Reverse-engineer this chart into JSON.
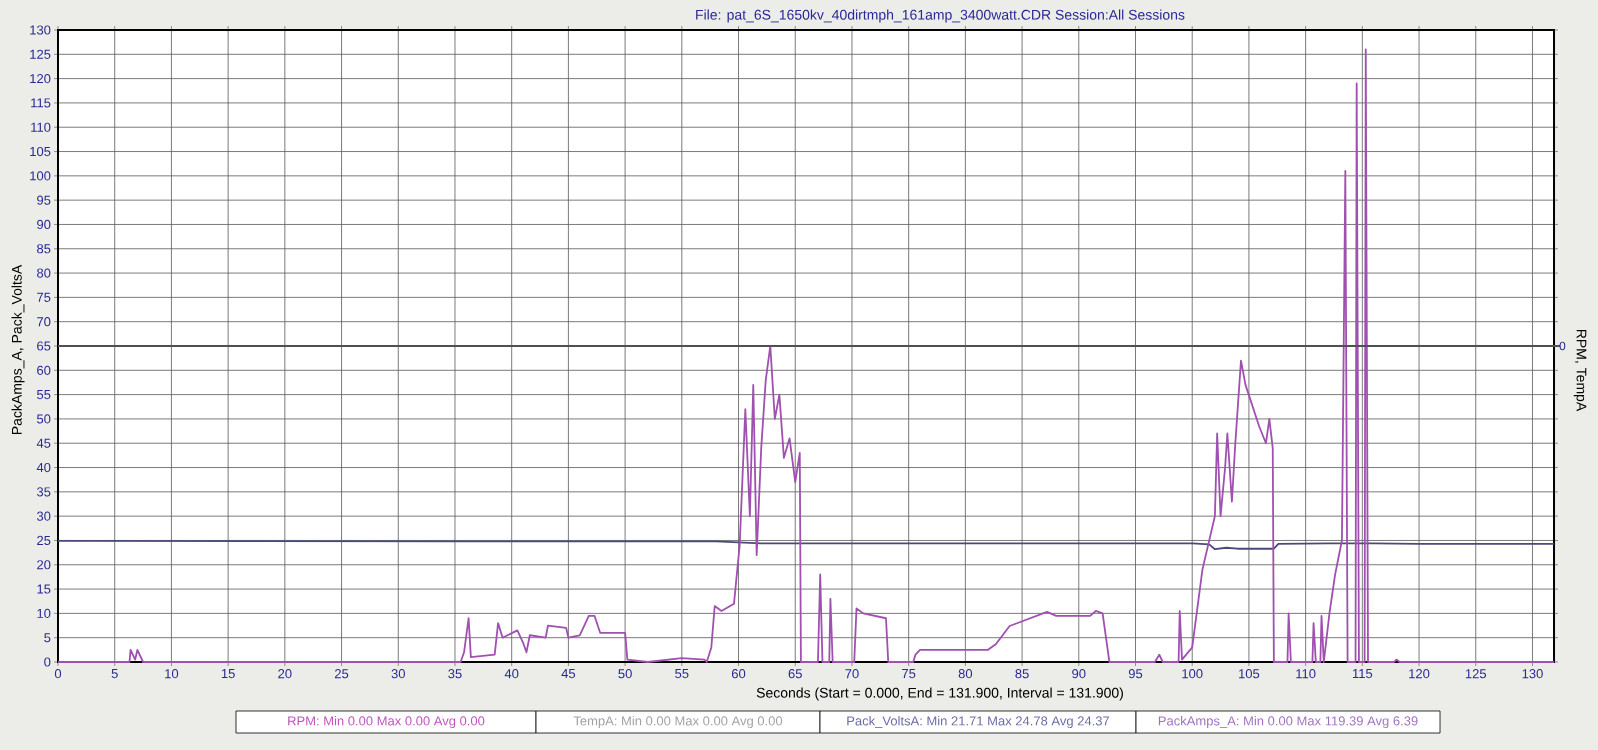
{
  "chart_data": {
    "type": "line",
    "title": "File: pat_6S_1650kv_40dirtmph_161amp_3400watt.CDR   Session:All Sessions",
    "xlabel": "Seconds (Start = 0.000,  End = 131.900,  Interval =  131.900)",
    "ylabel": "PackAmps_A, Pack_VoltsA",
    "y2label": "RPM, TempA",
    "xlim": [
      0,
      131.9
    ],
    "ylim": [
      0,
      130
    ],
    "xticks": [
      0,
      5,
      10,
      15,
      20,
      25,
      30,
      35,
      40,
      45,
      50,
      55,
      60,
      65,
      70,
      75,
      80,
      85,
      90,
      95,
      100,
      105,
      110,
      115,
      120,
      125,
      130
    ],
    "yticks": [
      0,
      5,
      10,
      15,
      20,
      25,
      30,
      35,
      40,
      45,
      50,
      55,
      60,
      65,
      70,
      75,
      80,
      85,
      90,
      95,
      100,
      105,
      110,
      115,
      120,
      125,
      130
    ],
    "grid": true,
    "ref_lines": [
      {
        "axis": "y",
        "value": 65,
        "color": "#505050"
      }
    ],
    "annotations": [
      "0",
      "RPM:  Min 0.00   Max 0.00   Avg 0.00",
      "TempA:  Min 0.00   Max 0.00   Avg 0.00",
      "Pack_VoltsA:  Min 21.71   Max 24.78   Avg 24.37",
      "PackAmps_A:  Min 0.00   Max 119.39   Avg 6.39"
    ],
    "series": [
      {
        "color": "#4a4a7a",
        "x": [
          0,
          36,
          50,
          58,
          60,
          62,
          80,
          100,
          101.5,
          102,
          103,
          104,
          106,
          107.2,
          107.6,
          112,
          116,
          120,
          131.9
        ],
        "values": [
          24.9,
          24.8,
          24.8,
          24.8,
          24.6,
          24.4,
          24.4,
          24.4,
          24.2,
          23.2,
          23.5,
          23.3,
          23.3,
          23.3,
          24.3,
          24.4,
          24.4,
          24.3,
          24.3
        ]
      },
      {
        "color": "#a050b0",
        "x": [
          0,
          6.3,
          6.4,
          6.8,
          7.0,
          7.5,
          35.5,
          35.8,
          36.2,
          36.4,
          38.5,
          38.8,
          39.2,
          40.5,
          41,
          41.3,
          41.6,
          43,
          43.2,
          44.8,
          45,
          46,
          46.8,
          47.3,
          47.8,
          50,
          50.2,
          52,
          55,
          57,
          57.2,
          57.6,
          57.9,
          58.5,
          59.6,
          60.1,
          60.6,
          61,
          61.3,
          61.6,
          62,
          62.4,
          62.8,
          63.2,
          63.6,
          64,
          64.5,
          65,
          65.4,
          65.5,
          67,
          67.2,
          67.4,
          68,
          68.1,
          68.3,
          70.2,
          70.4,
          71,
          73,
          73.2,
          75.4,
          75.6,
          76,
          82,
          82.7,
          83.9,
          87.2,
          88,
          91,
          91.5,
          92.1,
          92.7,
          96.7,
          97.1,
          97.4,
          98.8,
          98.9,
          99.1,
          100,
          100.9,
          101.4,
          102,
          102.2,
          102.5,
          102.9,
          103.1,
          103.5,
          103.8,
          104.3,
          104.7,
          105.9,
          106.5,
          106.8,
          107.1,
          107.2,
          108.4,
          108.5,
          108.7,
          110.6,
          110.7,
          110.9,
          111.3,
          111.4,
          111.6,
          112.1,
          112.6,
          113.2,
          113.5,
          113.7,
          114.4,
          114.5,
          114.7,
          115.2,
          115.3,
          115.5,
          117.8,
          118,
          118.3,
          131.9
        ],
        "values": [
          0,
          0,
          2.5,
          0.5,
          2.5,
          0,
          0,
          2,
          9,
          1,
          1.5,
          8,
          5,
          6.5,
          4,
          2,
          5.5,
          5,
          7.5,
          7,
          5,
          5.5,
          9.5,
          9.5,
          6,
          6,
          0.5,
          0,
          0.8,
          0.5,
          0,
          3,
          11.5,
          10.5,
          12,
          24,
          52,
          30,
          57,
          22,
          44,
          58,
          65,
          50,
          55,
          42,
          46,
          37,
          43,
          0,
          0,
          18,
          0,
          0,
          13,
          0,
          0,
          11,
          10,
          9,
          0,
          0,
          1.5,
          2.5,
          2.5,
          3.7,
          7.4,
          10.3,
          9.5,
          9.5,
          10.5,
          10,
          0,
          0,
          1.5,
          0,
          0,
          10.5,
          0.5,
          3,
          19,
          24,
          30,
          47,
          30,
          40,
          47,
          33,
          45,
          62,
          57,
          48.5,
          45,
          50,
          44,
          0,
          0,
          10,
          0,
          0,
          8,
          0,
          0,
          9.5,
          0,
          10,
          18,
          25,
          101,
          0,
          0,
          119,
          0,
          0,
          126,
          0,
          0,
          0.5,
          0,
          0
        ]
      }
    ]
  }
}
